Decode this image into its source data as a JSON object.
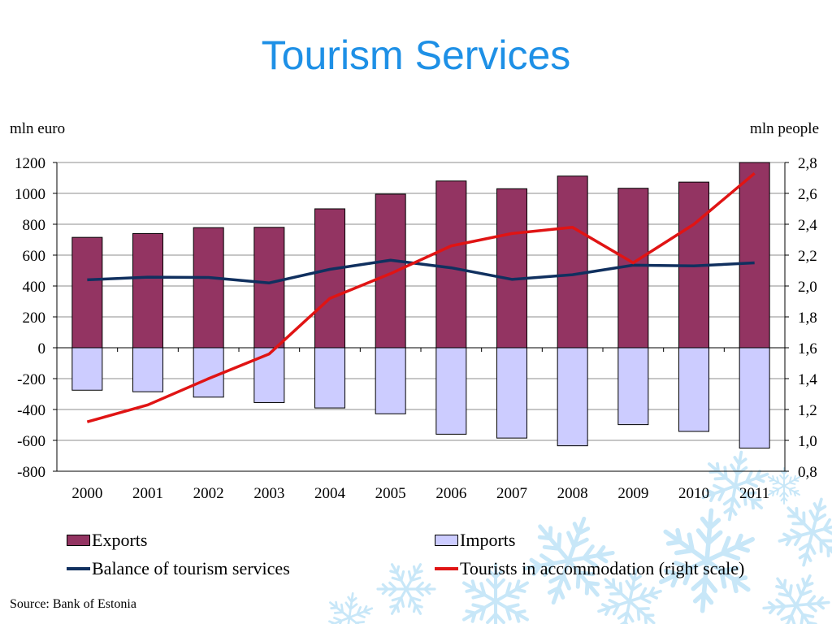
{
  "slide": {
    "title": "Tourism Services",
    "source": "Source: Bank of Estonia"
  },
  "colors": {
    "title": "#1e90e6",
    "exports": "#933462",
    "imports": "#ccccff",
    "balance": "#10305f",
    "tourists": "#e01414",
    "snowflake": "#bfe3f7"
  },
  "decoration": {
    "background_icon": "snowflake-icon"
  },
  "chart_data": {
    "type": "bar",
    "categories": [
      "2000",
      "2001",
      "2002",
      "2003",
      "2004",
      "2005",
      "2006",
      "2007",
      "2008",
      "2009",
      "2010",
      "2011"
    ],
    "left_axis": {
      "unit_label": "mln euro",
      "range": [
        -800,
        1200
      ],
      "ticks": [
        1200,
        1000,
        800,
        600,
        400,
        200,
        0,
        -200,
        -400,
        -600,
        -800
      ],
      "tick_labels": [
        "1200",
        "1000",
        "800",
        "600",
        "400",
        "200",
        "0",
        "-200",
        "-400",
        "-600",
        "-800"
      ]
    },
    "right_axis": {
      "unit_label": "mln people",
      "range": [
        0.8,
        2.8
      ],
      "ticks": [
        2.8,
        2.6,
        2.4,
        2.2,
        2.0,
        1.8,
        1.6,
        1.4,
        1.2,
        1.0,
        0.8
      ],
      "tick_labels": [
        "2,8",
        "2,6",
        "2,4",
        "2,2",
        "2,0",
        "1,8",
        "1,6",
        "1,4",
        "1,2",
        "1,0",
        "0,8"
      ]
    },
    "series": [
      {
        "name": "Exports",
        "type": "bar",
        "axis": "left",
        "values": [
          715,
          740,
          778,
          780,
          900,
          995,
          1080,
          1030,
          1112,
          1033,
          1073,
          1200
        ]
      },
      {
        "name": "Imports",
        "type": "bar",
        "axis": "left",
        "values": [
          -275,
          -285,
          -320,
          -355,
          -390,
          -428,
          -560,
          -585,
          -635,
          -498,
          -542,
          -650
        ]
      },
      {
        "name": "Balance of tourism services",
        "type": "line",
        "axis": "left",
        "values": [
          440,
          457,
          455,
          420,
          508,
          567,
          518,
          443,
          473,
          535,
          530,
          550
        ]
      },
      {
        "name": "Tourists in accommodation (right scale)",
        "type": "line",
        "axis": "right",
        "values": [
          1.12,
          1.23,
          1.4,
          1.56,
          1.92,
          2.08,
          2.26,
          2.34,
          2.38,
          2.15,
          2.4,
          2.73
        ]
      }
    ],
    "grid": "horizontal",
    "legend_position": "bottom"
  }
}
